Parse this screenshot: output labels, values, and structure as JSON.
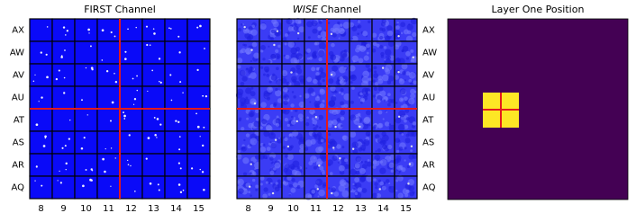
{
  "panels": [
    {
      "title": "FIRST Channel",
      "rows": [
        "AX",
        "AW",
        "AV",
        "AU",
        "AT",
        "AS",
        "AR",
        "AQ"
      ],
      "columns": [
        8,
        9,
        10,
        11,
        12,
        13,
        14,
        15
      ]
    },
    {
      "title_emphasis": "WISE",
      "title_rest": "Channel",
      "rows": [
        "AX",
        "AW",
        "AV",
        "AU",
        "AT",
        "AS",
        "AR",
        "AQ"
      ],
      "columns": [
        8,
        9,
        10,
        11,
        12,
        13,
        14,
        15
      ]
    },
    {
      "title": "Layer One Position"
    }
  ]
}
